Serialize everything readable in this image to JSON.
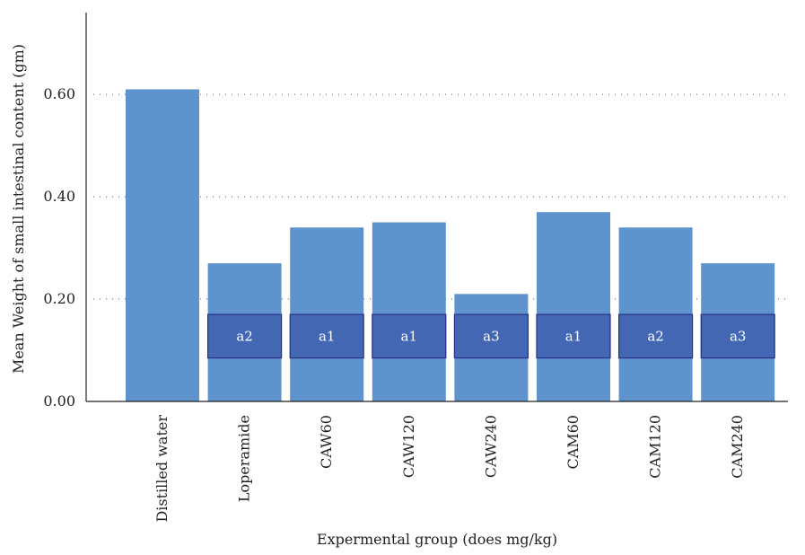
{
  "chart_data": {
    "type": "bar",
    "title": "",
    "xlabel": "Expermental group (does mg/kg)",
    "ylabel": "Mean Weight of small intestinal content (gm)",
    "categories": [
      "Distilled water",
      "Loperamide",
      "CAW60",
      "CAW120",
      "CAW240",
      "CAM60",
      "CAM120",
      "CAM240"
    ],
    "values": [
      0.61,
      0.27,
      0.34,
      0.35,
      0.21,
      0.37,
      0.34,
      0.27
    ],
    "significance_labels": [
      "",
      "a2",
      "a1",
      "a1",
      "a3",
      "a1",
      "a2",
      "a3"
    ],
    "significance_band": [
      0.085,
      0.17
    ],
    "ylim": [
      0,
      0.76
    ],
    "yticks": [
      0.0,
      0.2,
      0.4,
      0.6
    ],
    "ytick_labels": [
      "0.00",
      "0.20",
      "0.40",
      "0.60"
    ],
    "grid": "horizontal-dotted",
    "colors": {
      "bar": "#5f93cd",
      "badge_fill": "#4467b4",
      "badge_stroke": "#2a2f86",
      "badge_text": "#ffffff"
    }
  }
}
